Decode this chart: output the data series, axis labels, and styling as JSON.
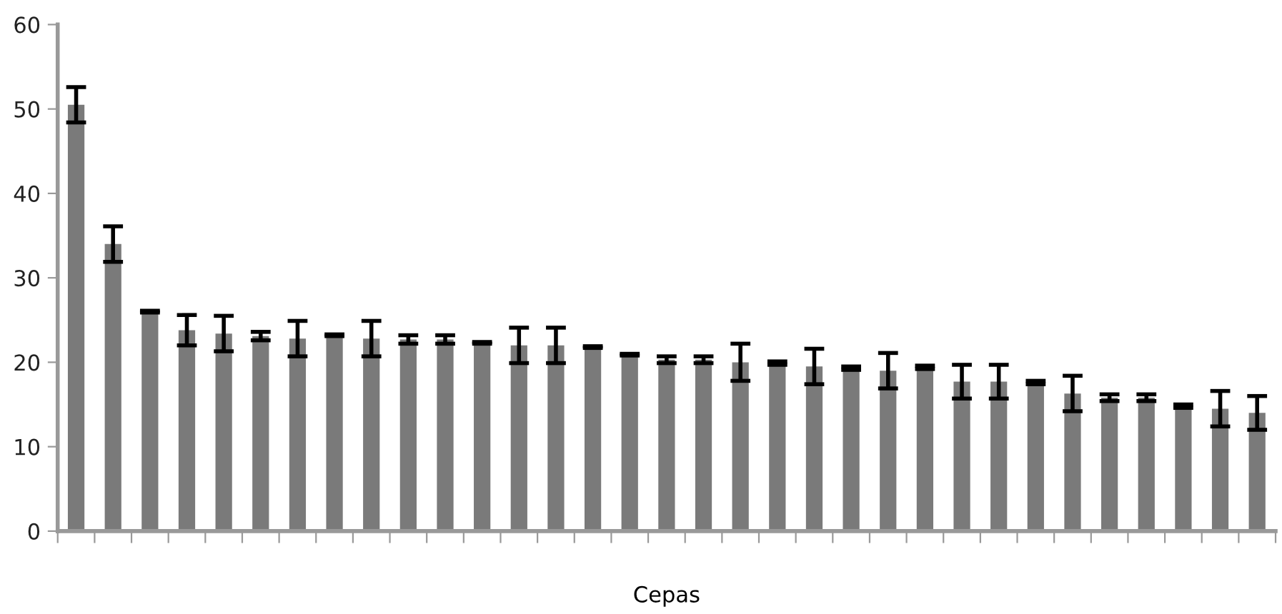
{
  "chart_data": {
    "type": "bar",
    "xlabel": "Cepas",
    "categories": [
      null,
      null,
      null,
      null,
      null,
      null,
      null,
      null,
      null,
      null,
      null,
      null,
      null,
      null,
      null,
      null,
      null,
      null,
      null,
      null,
      null,
      null,
      null,
      null,
      null,
      null,
      null,
      null,
      null,
      null,
      null,
      null,
      null
    ],
    "values": [
      50.5,
      34.0,
      26.0,
      23.8,
      23.4,
      23.1,
      22.8,
      23.2,
      22.8,
      22.7,
      22.7,
      22.3,
      22.0,
      22.0,
      21.8,
      20.9,
      20.3,
      20.3,
      20.0,
      19.9,
      19.5,
      19.3,
      19.0,
      19.4,
      17.7,
      17.7,
      17.6,
      16.3,
      15.8,
      15.8,
      14.8,
      14.5,
      14.0
    ],
    "errors": [
      2.1,
      2.1,
      0.1,
      1.8,
      2.1,
      0.5,
      2.1,
      0.1,
      2.1,
      0.5,
      0.5,
      0.1,
      2.1,
      2.1,
      0.1,
      0.1,
      0.4,
      0.4,
      2.2,
      0.2,
      2.1,
      0.2,
      2.1,
      0.2,
      2.0,
      2.0,
      0.2,
      2.1,
      0.4,
      0.4,
      0.2,
      2.1,
      2.0
    ],
    "color": "#7a7a7a",
    "ylim": [
      0,
      60
    ],
    "yticks": [
      0,
      10,
      20,
      30,
      40,
      50,
      60
    ],
    "grid": false,
    "legend": false
  }
}
